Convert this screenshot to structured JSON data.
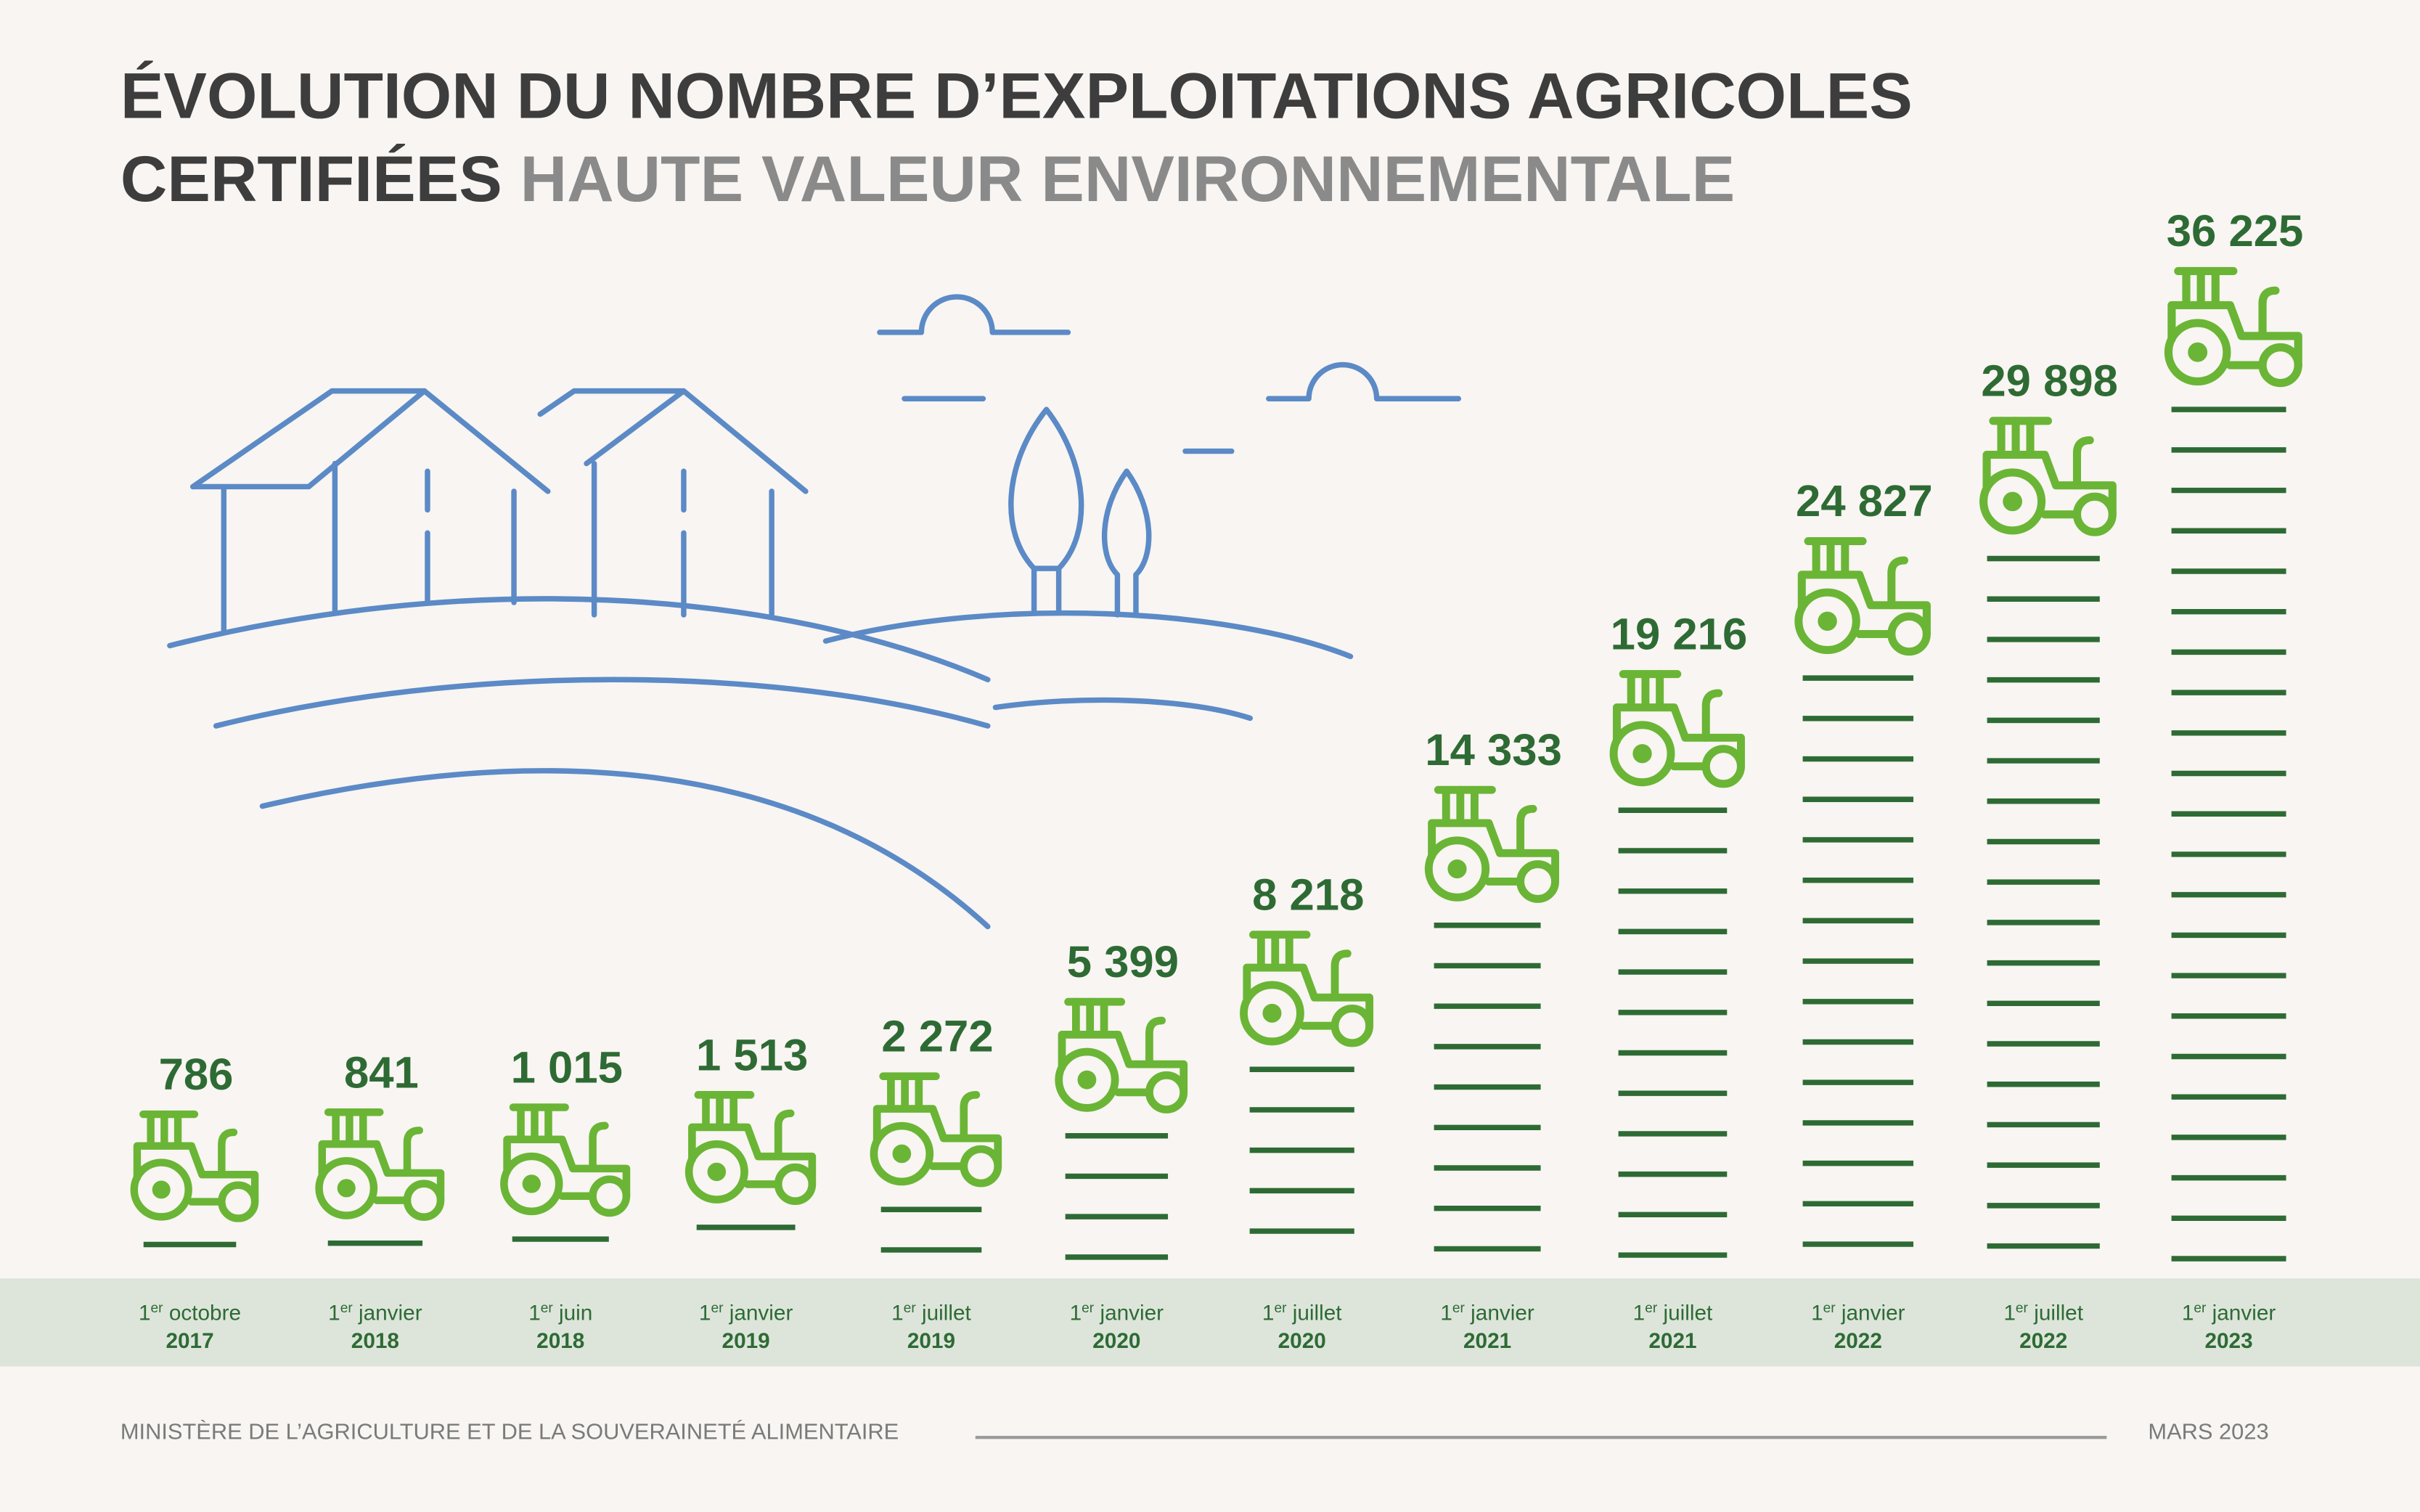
{
  "chart_data": {
    "type": "bar",
    "title_lines": [
      "ÉVOLUTION DU NOMBRE D’EXPLOITATIONS AGRICOLES",
      "CERTIFIÉES"
    ],
    "subtitle": "HAUTE VALEUR ENVIRONNEMENTALE",
    "categories": [
      "1er octobre",
      "1er janvier",
      "1er juin",
      "1er janvier",
      "1er juillet",
      "1er janvier",
      "1er juillet",
      "1er janvier",
      "1er juillet",
      "1er janvier",
      "1er juillet",
      "1er janvier"
    ],
    "years": [
      "2017",
      "2018",
      "2018",
      "2019",
      "2019",
      "2020",
      "2020",
      "2021",
      "2021",
      "2022",
      "2022",
      "2023"
    ],
    "values": [
      786,
      841,
      1015,
      1513,
      2272,
      5399,
      8218,
      14333,
      19216,
      24827,
      29898,
      36225
    ],
    "value_labels": [
      "786",
      "841",
      "1 015",
      "1 513",
      "2 272",
      "5 399",
      "8 218",
      "14 333",
      "19 216",
      "24 827",
      "29 898",
      "36 225"
    ],
    "color": "#2e6b34",
    "icon_color": "#6ab535",
    "source": "MINISTÈRE DE L’AGRICULTURE ET DE LA SOUVERAINETÉ ALIMENTAIRE",
    "date": "MARS 2023"
  }
}
